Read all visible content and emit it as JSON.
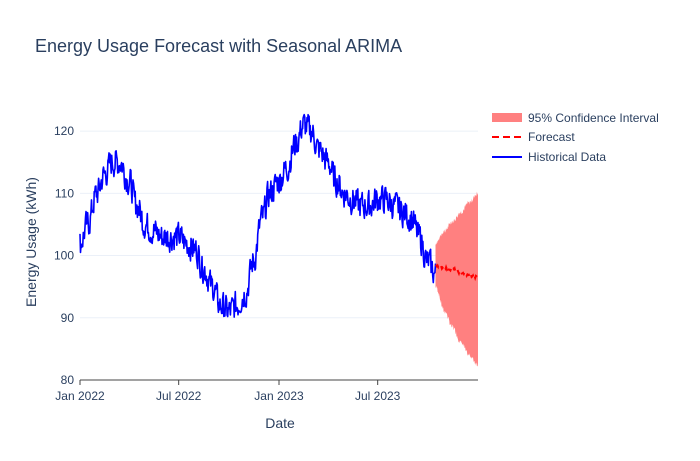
{
  "chart_data": {
    "type": "line",
    "title": "Energy Usage Forecast with Seasonal ARIMA",
    "xlabel": "Date",
    "ylabel": "Energy Usage (kWh)",
    "x_range": [
      "2022-01-01",
      "2024-01-01"
    ],
    "ylim": [
      80,
      125
    ],
    "x_ticks": [
      {
        "date": "2022-01-01",
        "label": "Jan 2022"
      },
      {
        "date": "2022-07-01",
        "label": "Jul 2022"
      },
      {
        "date": "2023-01-01",
        "label": "Jan 2023"
      },
      {
        "date": "2023-07-01",
        "label": "Jul 2023"
      }
    ],
    "y_ticks": [
      80,
      90,
      100,
      110,
      120
    ],
    "legend": {
      "placement": "top-right",
      "entries": [
        "95% Confidence Interval",
        "Forecast",
        "Historical Data"
      ]
    },
    "colors": {
      "historical": "#0000ff",
      "forecast": "#ff0000",
      "confidence": "#ff8080",
      "text": "#2a3f5f",
      "axis": "#444444"
    },
    "series": [
      {
        "name": "Historical Data",
        "style": "solid",
        "x": [
          "2022-01-01",
          "2022-01-15",
          "2022-02-01",
          "2022-02-15",
          "2022-03-01",
          "2022-03-15",
          "2022-04-01",
          "2022-04-15",
          "2022-05-01",
          "2022-05-15",
          "2022-06-01",
          "2022-06-15",
          "2022-07-01",
          "2022-07-15",
          "2022-08-01",
          "2022-08-15",
          "2022-09-01",
          "2022-09-15",
          "2022-10-01",
          "2022-10-15",
          "2022-11-01",
          "2022-11-15",
          "2022-12-01",
          "2022-12-15",
          "2023-01-01",
          "2023-01-15",
          "2023-02-01",
          "2023-02-15",
          "2023-03-01",
          "2023-03-15",
          "2023-04-01",
          "2023-04-15",
          "2023-05-01",
          "2023-05-15",
          "2023-06-01",
          "2023-06-15",
          "2023-07-01",
          "2023-07-15",
          "2023-08-01",
          "2023-08-15",
          "2023-09-01",
          "2023-09-15",
          "2023-10-01",
          "2023-10-15"
        ],
        "values": [
          102,
          105,
          110,
          113,
          115,
          115,
          112,
          108,
          105,
          104,
          103,
          103,
          103,
          102,
          101,
          98,
          95,
          92,
          91,
          92,
          94,
          99,
          106,
          110,
          112,
          114,
          118,
          121,
          120,
          117,
          115,
          112,
          110,
          109,
          108,
          108,
          109,
          109,
          108,
          107,
          106,
          103,
          99,
          97
        ]
      },
      {
        "name": "Forecast",
        "style": "dashed",
        "x": [
          "2023-10-15",
          "2023-11-01",
          "2023-11-15",
          "2023-12-01",
          "2023-12-15",
          "2024-01-01"
        ],
        "values": [
          98.5,
          98.0,
          97.8,
          97.3,
          96.8,
          96.5
        ]
      },
      {
        "name": "95% Confidence Interval",
        "style": "band",
        "x": [
          "2023-10-15",
          "2023-11-01",
          "2023-11-15",
          "2023-12-01",
          "2023-12-15",
          "2024-01-01"
        ],
        "lower": [
          95,
          91,
          88.5,
          86,
          84,
          82.5
        ],
        "upper": [
          102,
          104,
          105.5,
          107,
          108.5,
          110
        ]
      }
    ]
  }
}
